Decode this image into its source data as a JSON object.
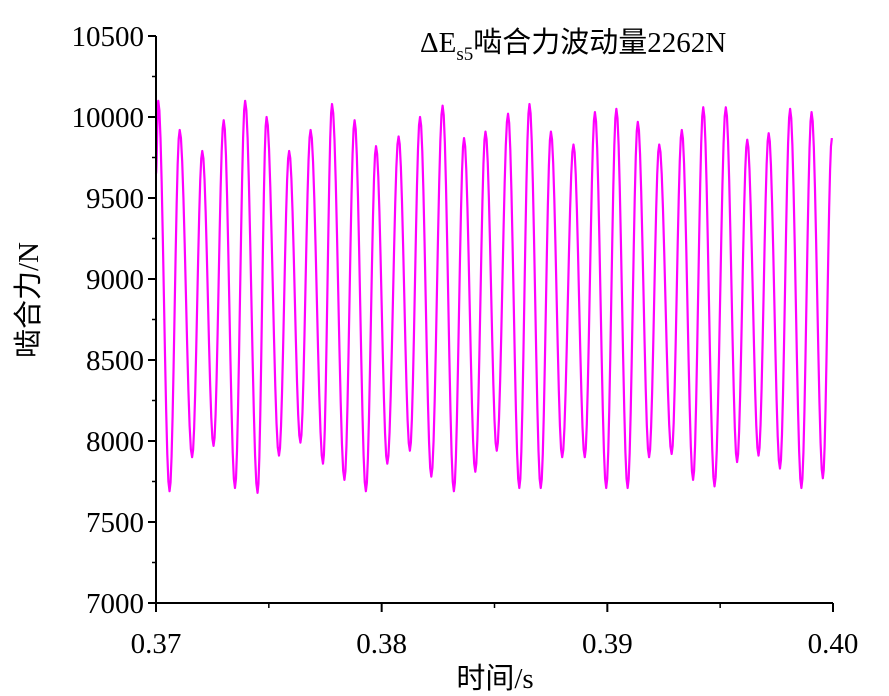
{
  "chart_data": {
    "type": "line",
    "annotation": {
      "delta": "ΔE",
      "subscript": "s5",
      "text": "啮合力波动量2262N"
    },
    "xlabel": "时间/s",
    "ylabel": "啮合力/N",
    "xlim": [
      0.37,
      0.4
    ],
    "ylim": [
      7000,
      10500
    ],
    "x_ticks": [
      0.37,
      0.38,
      0.39,
      0.4
    ],
    "x_tick_labels": [
      "0.37",
      "0.38",
      "0.39",
      "0.40"
    ],
    "y_ticks": [
      7000,
      7500,
      8000,
      8500,
      9000,
      9500,
      10000,
      10500
    ],
    "y_tick_labels": [
      "7000",
      "7500",
      "8000",
      "8500",
      "9000",
      "9500",
      "10000",
      "10500"
    ],
    "grid": false,
    "series": [
      {
        "color": "#ff00ff",
        "peaks": [
          {
            "x": 0.3701,
            "y": 10100
          },
          {
            "x": 0.37105,
            "y": 9920
          },
          {
            "x": 0.37205,
            "y": 9790
          },
          {
            "x": 0.373,
            "y": 9980
          },
          {
            "x": 0.37395,
            "y": 10100
          },
          {
            "x": 0.3749,
            "y": 10000
          },
          {
            "x": 0.3759,
            "y": 9790
          },
          {
            "x": 0.37685,
            "y": 9920
          },
          {
            "x": 0.3778,
            "y": 10080
          },
          {
            "x": 0.3788,
            "y": 9980
          },
          {
            "x": 0.37975,
            "y": 9820
          },
          {
            "x": 0.38075,
            "y": 9880
          },
          {
            "x": 0.3817,
            "y": 10000
          },
          {
            "x": 0.3827,
            "y": 10070
          },
          {
            "x": 0.38365,
            "y": 9870
          },
          {
            "x": 0.3846,
            "y": 9910
          },
          {
            "x": 0.3856,
            "y": 10020
          },
          {
            "x": 0.38655,
            "y": 10080
          },
          {
            "x": 0.3875,
            "y": 9910
          },
          {
            "x": 0.3885,
            "y": 9830
          },
          {
            "x": 0.38945,
            "y": 10030
          },
          {
            "x": 0.3904,
            "y": 10050
          },
          {
            "x": 0.39135,
            "y": 9970
          },
          {
            "x": 0.3923,
            "y": 9830
          },
          {
            "x": 0.3933,
            "y": 9920
          },
          {
            "x": 0.39425,
            "y": 10060
          },
          {
            "x": 0.39525,
            "y": 10060
          },
          {
            "x": 0.3962,
            "y": 9860
          },
          {
            "x": 0.39715,
            "y": 9900
          },
          {
            "x": 0.3981,
            "y": 10050
          },
          {
            "x": 0.39905,
            "y": 10030
          },
          {
            "x": 0.39995,
            "y": 9870
          }
        ],
        "troughs": [
          {
            "x": 0.3706,
            "y": 7690
          },
          {
            "x": 0.3716,
            "y": 7900
          },
          {
            "x": 0.37255,
            "y": 7970
          },
          {
            "x": 0.3735,
            "y": 7710
          },
          {
            "x": 0.3745,
            "y": 7680
          },
          {
            "x": 0.37545,
            "y": 7910
          },
          {
            "x": 0.3764,
            "y": 7990
          },
          {
            "x": 0.3774,
            "y": 7860
          },
          {
            "x": 0.37835,
            "y": 7760
          },
          {
            "x": 0.3793,
            "y": 7690
          },
          {
            "x": 0.38025,
            "y": 7860
          },
          {
            "x": 0.38125,
            "y": 7940
          },
          {
            "x": 0.3822,
            "y": 7780
          },
          {
            "x": 0.3832,
            "y": 7690
          },
          {
            "x": 0.38415,
            "y": 7810
          },
          {
            "x": 0.3851,
            "y": 7940
          },
          {
            "x": 0.3861,
            "y": 7710
          },
          {
            "x": 0.38705,
            "y": 7710
          },
          {
            "x": 0.388,
            "y": 7900
          },
          {
            "x": 0.389,
            "y": 7900
          },
          {
            "x": 0.38995,
            "y": 7710
          },
          {
            "x": 0.3909,
            "y": 7710
          },
          {
            "x": 0.39185,
            "y": 7900
          },
          {
            "x": 0.39285,
            "y": 7920
          },
          {
            "x": 0.3938,
            "y": 7760
          },
          {
            "x": 0.39475,
            "y": 7720
          },
          {
            "x": 0.39575,
            "y": 7870
          },
          {
            "x": 0.3967,
            "y": 7910
          },
          {
            "x": 0.39765,
            "y": 7830
          },
          {
            "x": 0.3986,
            "y": 7710
          },
          {
            "x": 0.39955,
            "y": 7770
          }
        ]
      }
    ]
  }
}
